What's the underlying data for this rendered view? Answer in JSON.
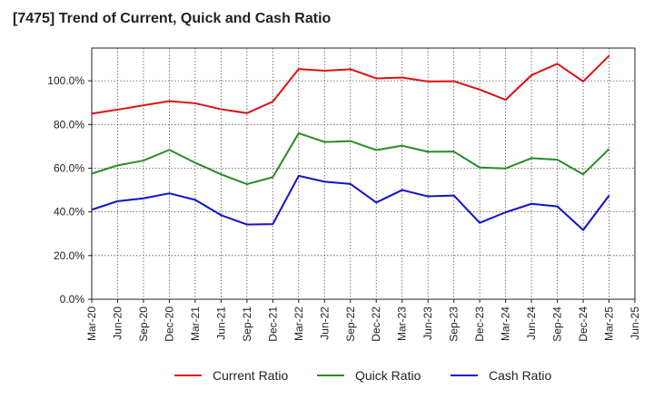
{
  "chart_data": {
    "type": "line",
    "title": "[7475]  Trend of Current, Quick and Cash Ratio",
    "xlabel": "",
    "ylabel": "",
    "ylim": [
      0,
      115
    ],
    "yticks": [
      0,
      20,
      40,
      60,
      80,
      100
    ],
    "ytick_labels": [
      "0.0%",
      "20.0%",
      "40.0%",
      "60.0%",
      "80.0%",
      "100.0%"
    ],
    "grid": true,
    "legend_position": "bottom",
    "categories": [
      "Mar-20",
      "Jun-20",
      "Sep-20",
      "Dec-20",
      "Mar-21",
      "Jun-21",
      "Sep-21",
      "Dec-21",
      "Mar-22",
      "Jun-22",
      "Sep-22",
      "Dec-22",
      "Mar-23",
      "Jun-23",
      "Sep-23",
      "Dec-23",
      "Mar-24",
      "Jun-24",
      "Sep-24",
      "Dec-24",
      "Mar-25",
      "Jun-25"
    ],
    "series": [
      {
        "name": "Current Ratio",
        "color": "#dd1111",
        "values": [
          85.0,
          86.8,
          88.8,
          90.7,
          89.7,
          87.0,
          85.2,
          90.5,
          105.4,
          104.6,
          105.3,
          101.1,
          101.5,
          99.7,
          99.8,
          96.0,
          91.3,
          102.6,
          107.8,
          99.7,
          111.5,
          null
        ]
      },
      {
        "name": "Quick Ratio",
        "color": "#2a8a2a",
        "values": [
          57.5,
          61.3,
          63.5,
          68.4,
          62.5,
          57.2,
          52.7,
          55.9,
          76.0,
          72.0,
          72.4,
          68.3,
          70.3,
          67.5,
          67.6,
          60.3,
          59.9,
          64.6,
          63.9,
          57.2,
          68.8,
          null
        ]
      },
      {
        "name": "Cash Ratio",
        "color": "#1111cc",
        "values": [
          41.0,
          44.9,
          46.2,
          48.5,
          45.5,
          38.5,
          34.2,
          34.4,
          56.5,
          53.8,
          52.8,
          44.3,
          50.0,
          47.1,
          47.5,
          35.0,
          39.8,
          43.7,
          42.5,
          31.7,
          47.5,
          null
        ]
      }
    ]
  }
}
